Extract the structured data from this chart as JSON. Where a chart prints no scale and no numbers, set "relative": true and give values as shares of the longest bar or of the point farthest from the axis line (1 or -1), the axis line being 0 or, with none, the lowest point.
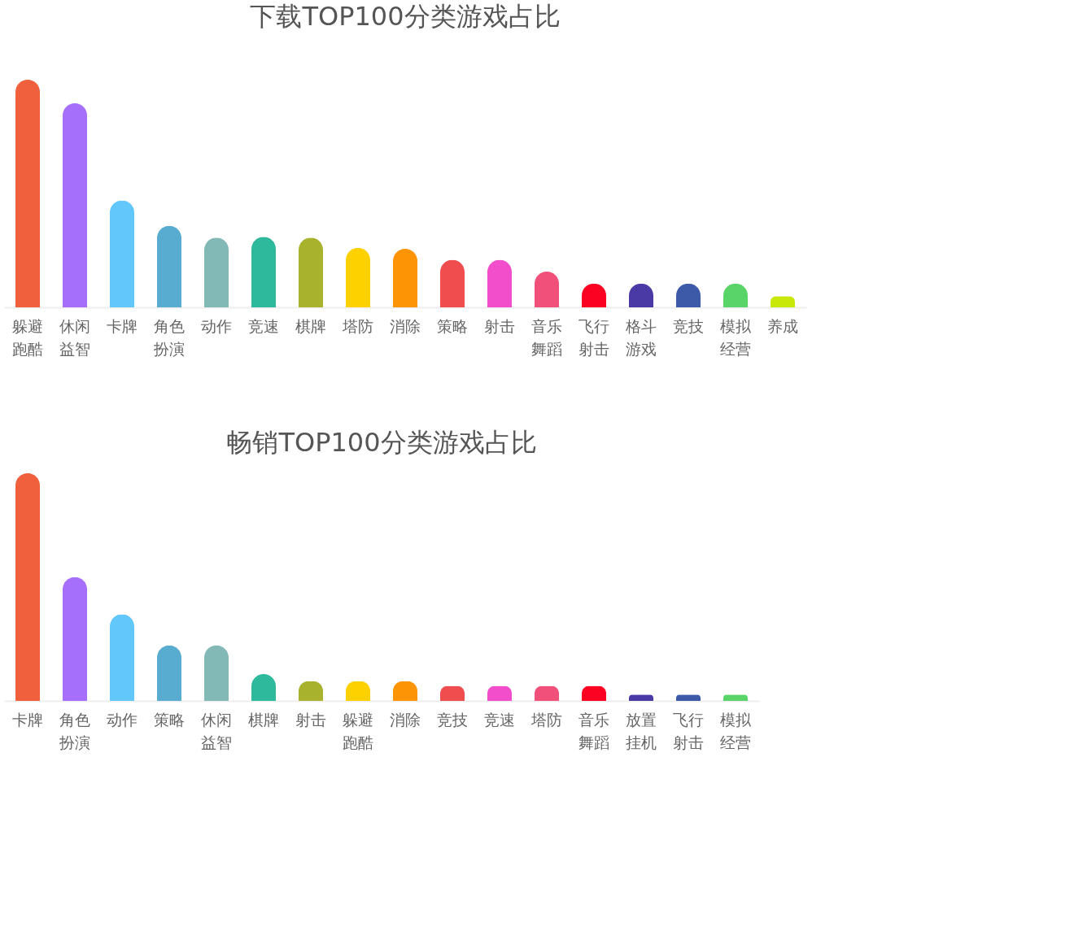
{
  "chart_data": [
    {
      "type": "bar",
      "title": "下载TOP100分类游戏占比",
      "relative": true,
      "categories": [
        "躲避跑酷",
        "休闲益智",
        "卡牌",
        "角色扮演",
        "动作",
        "竞速",
        "棋牌",
        "塔防",
        "消除",
        "策略",
        "射击",
        "音乐舞蹈",
        "飞行射击",
        "格斗游戏",
        "竞技",
        "模拟经营",
        "养成"
      ],
      "values": [
        1,
        0.896,
        0.47,
        0.358,
        0.306,
        0.31,
        0.306,
        0.261,
        0.257,
        0.209,
        0.209,
        0.157,
        0.104,
        0.104,
        0.104,
        0.104,
        0.049
      ],
      "colors": [
        "#f0603c",
        "#a56ffc",
        "#62c8fb",
        "#58acd0",
        "#82b8b6",
        "#2eb99c",
        "#a8b22c",
        "#fdd000",
        "#fd9406",
        "#f04e4e",
        "#f24ecb",
        "#f0507a",
        "#fb0222",
        "#4a3aa6",
        "#3c5aa8",
        "#58d468",
        "#c8e80a"
      ]
    },
    {
      "type": "bar",
      "title": "畅销TOP100分类游戏占比",
      "relative": true,
      "categories": [
        "卡牌",
        "角色扮演",
        "动作",
        "策略",
        "休闲益智",
        "棋牌",
        "射击",
        "躲避跑酷",
        "消除",
        "竞技",
        "竞速",
        "塔防",
        "音乐舞蹈",
        "放置挂机",
        "飞行射击",
        "模拟经营"
      ],
      "values": [
        1,
        0.544,
        0.38,
        0.244,
        0.244,
        0.118,
        0.087,
        0.087,
        0.087,
        0.066,
        0.066,
        0.066,
        0.066,
        0.028,
        0.028,
        0.028
      ],
      "colors": [
        "#f0603c",
        "#a56ffc",
        "#62c8fb",
        "#58acd0",
        "#82b8b6",
        "#2eb99c",
        "#a8b22c",
        "#fdd000",
        "#fd9406",
        "#f04e4e",
        "#f24ecb",
        "#f0507a",
        "#fb0222",
        "#4a3aa6",
        "#3c5aa8",
        "#58d468"
      ]
    }
  ]
}
